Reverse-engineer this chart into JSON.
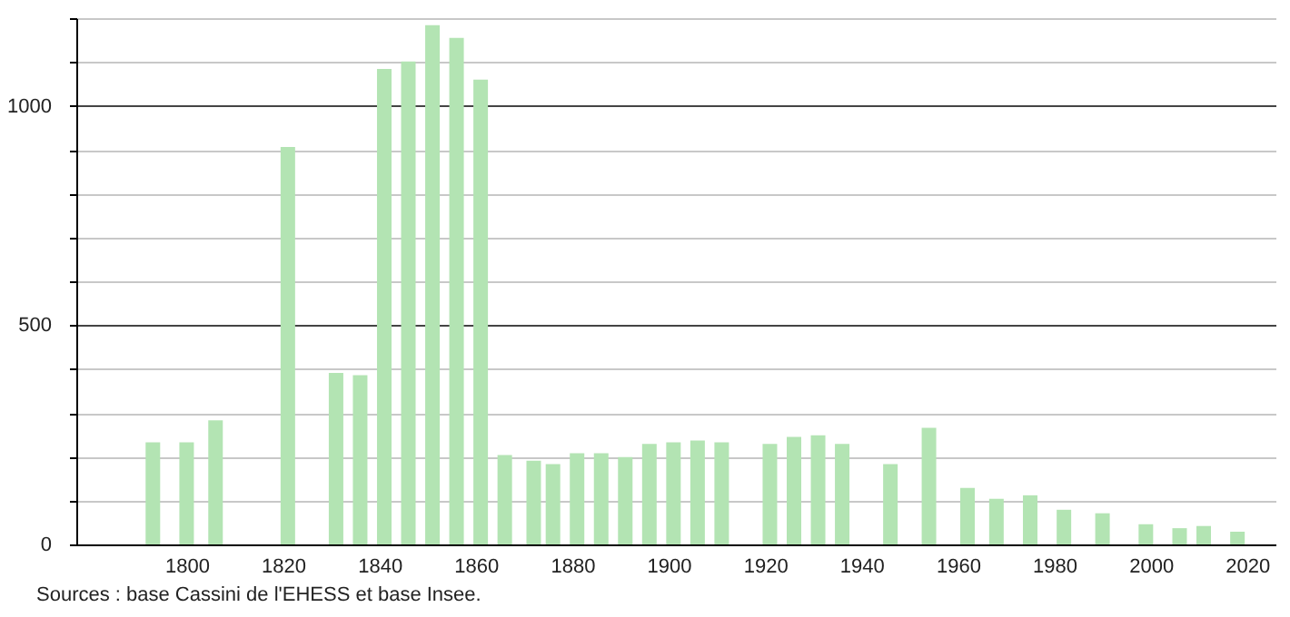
{
  "chart_data": {
    "type": "bar",
    "x": [
      1793,
      1800,
      1806,
      1821,
      1831,
      1836,
      1841,
      1846,
      1851,
      1856,
      1861,
      1866,
      1872,
      1876,
      1881,
      1886,
      1891,
      1896,
      1901,
      1906,
      1911,
      1921,
      1926,
      1931,
      1936,
      1946,
      1954,
      1962,
      1968,
      1975,
      1982,
      1990,
      1999,
      2006,
      2011,
      2018
    ],
    "series": [
      {
        "color": "#b3e4b3",
        "values": [
          233,
          233,
          283,
          906,
          391,
          386,
          1084,
          1101,
          1184,
          1155,
          1060,
          204,
          191,
          183,
          208,
          208,
          199,
          229,
          233,
          237,
          233,
          229,
          245,
          249,
          229,
          183,
          266,
          129,
          104,
          112,
          79,
          71,
          46,
          37,
          42,
          29
        ]
      }
    ],
    "xlim": [
      1779,
      2024
    ],
    "xticks": [
      1800,
      1820,
      1840,
      1860,
      1880,
      1900,
      1920,
      1940,
      1960,
      1980,
      2000,
      2020
    ],
    "ylim": [
      0,
      1200
    ],
    "yticks": [
      0,
      {
        "value": 100,
        "label": null
      },
      {
        "value": 200,
        "label": null
      },
      {
        "value": 300,
        "label": null
      },
      {
        "value": 400,
        "label": null
      },
      500,
      {
        "value": 600,
        "label": null
      },
      {
        "value": 700,
        "label": null
      },
      {
        "value": 800,
        "label": null
      },
      {
        "value": 900,
        "label": null
      },
      1000,
      {
        "value": 1100,
        "label": null
      },
      {
        "value": 1200,
        "label": null
      }
    ],
    "grid": "y",
    "annotations": [
      "Sources : base Cassini de l'EHESS et base Insee."
    ]
  }
}
